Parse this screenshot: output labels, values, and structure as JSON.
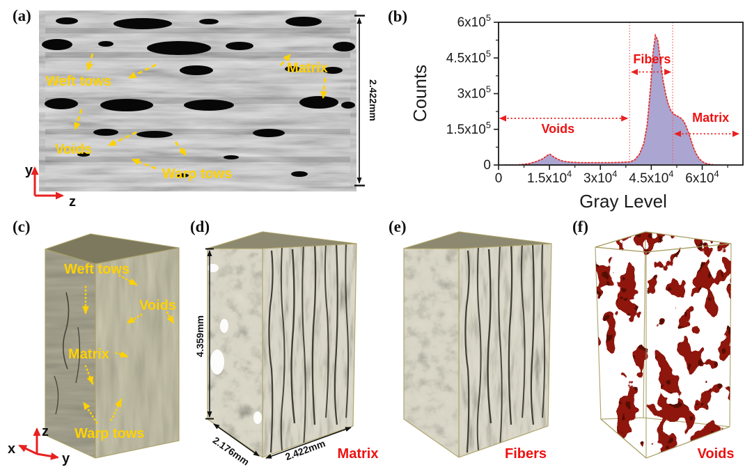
{
  "figure": {
    "panels": {
      "a": {
        "tag": "(a)",
        "scale_label": "2.422mm",
        "annotations": {
          "weft": "Weft tows",
          "matrix": "Matrix",
          "voids": "Voids",
          "warp": "Warp tows"
        },
        "axes": {
          "vertical": "y",
          "horizontal": "z"
        }
      },
      "b": {
        "tag": "(b)"
      },
      "c": {
        "tag": "(c)",
        "annotations": {
          "weft": "Weft tows",
          "voids": "Voids",
          "matrix": "Matrix",
          "warp": "Warp tows"
        },
        "axes": {
          "up": "z",
          "left": "x",
          "right": "y"
        }
      },
      "d": {
        "tag": "(d)",
        "dimensions": {
          "height": "4.359mm",
          "depth": "2.176mm",
          "width": "2.422mm"
        },
        "caption": "Matrix"
      },
      "e": {
        "tag": "(e)",
        "caption": "Fibers"
      },
      "f": {
        "tag": "(f)",
        "caption": "Voids"
      }
    },
    "colors": {
      "annotation_yellow": "#ffd200",
      "label_red": "#ee1111",
      "histogram_fill": "#aaa5d1",
      "histogram_outline": "#e8302e",
      "matrix_tan": "#a09c82",
      "volume_olive": "#605d49",
      "void_red": "#8e1810",
      "box_wire": "#a89f63"
    }
  },
  "chart_data": {
    "type": "area",
    "title": "",
    "xlabel": "Gray Level",
    "ylabel": "Counts",
    "xlim": [
      0,
      72000
    ],
    "ylim": [
      0,
      600000
    ],
    "grid": false,
    "legend": "none",
    "x_ticks": [
      {
        "v": 0,
        "label": "0"
      },
      {
        "v": 15000,
        "label": "1.5x10^4"
      },
      {
        "v": 30000,
        "label": "3x10^4"
      },
      {
        "v": 45000,
        "label": "4.5x10^4"
      },
      {
        "v": 60000,
        "label": "6x10^4"
      }
    ],
    "y_ticks": [
      {
        "v": 0,
        "label": "0"
      },
      {
        "v": 150000,
        "label": "1.5x10^5"
      },
      {
        "v": 300000,
        "label": "3x10^5"
      },
      {
        "v": 450000,
        "label": "4.5x10^5"
      },
      {
        "v": 600000,
        "label": "6x10^5"
      }
    ],
    "x_minor_step": 7500,
    "y_minor_step": 75000,
    "fill_color": "#aaa5d1",
    "outline_color": "#e8302e",
    "series": [
      {
        "name": "gray-level-histogram",
        "x": [
          2000,
          3500,
          5000,
          7000,
          9000,
          11000,
          13000,
          14500,
          15200,
          16000,
          17500,
          19000,
          21000,
          24000,
          27000,
          30000,
          33000,
          36000,
          38500,
          40000,
          41500,
          42800,
          43800,
          44800,
          45500,
          46200,
          46900,
          47600,
          48400,
          49200,
          50000,
          50800,
          51800,
          52800,
          53800,
          54500,
          55200,
          56000,
          56800,
          57500,
          58300,
          59200,
          60200,
          61200,
          62300,
          63500,
          65000
        ],
        "y": [
          0,
          0,
          0,
          2000,
          6000,
          14000,
          26000,
          42000,
          45000,
          36000,
          24000,
          16000,
          12000,
          10000,
          10000,
          10000,
          10000,
          11000,
          13000,
          20000,
          45000,
          90000,
          170000,
          330000,
          470000,
          545000,
          525000,
          450000,
          360000,
          300000,
          255000,
          228000,
          212000,
          205000,
          196000,
          185000,
          165000,
          135000,
          100000,
          70000,
          45000,
          25000,
          13000,
          6000,
          2500,
          800,
          0
        ]
      }
    ],
    "threshold_lines": [
      38600,
      51300
    ],
    "regions": [
      {
        "label": "Voids",
        "x1": 0,
        "x2": 38600,
        "arrow_y": 196000,
        "label_x": 17500,
        "label_y": 134000
      },
      {
        "label": "Fibers",
        "x1": 38600,
        "x2": 51300,
        "arrow_y": 391000,
        "label_x": 45200,
        "label_y": 427000
      },
      {
        "label": "Matrix",
        "x1": 51300,
        "x2": 72000,
        "arrow_y": 131000,
        "label_x": 62500,
        "label_y": 181000
      }
    ]
  }
}
